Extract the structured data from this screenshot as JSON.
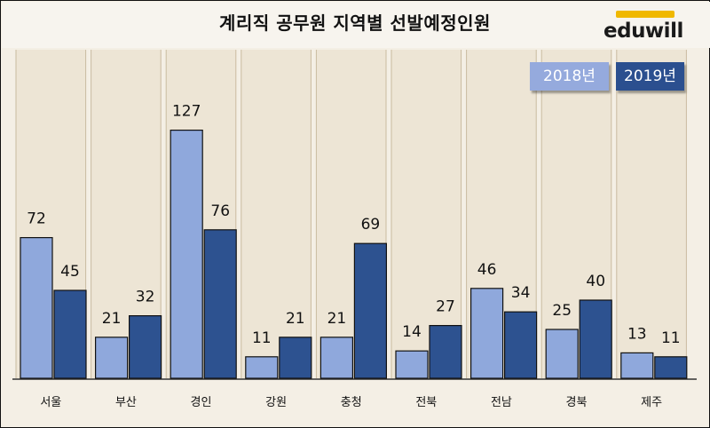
{
  "title": "계리직 공무원 지역별 선발예정인원",
  "logo": "eduwill",
  "colors": {
    "s2018": "#8fa8dc",
    "s2019": "#2d5290",
    "background": "#f4efe5",
    "stripe": "#e7ddc9"
  },
  "chart_data": {
    "type": "bar",
    "title": "계리직 공무원 지역별 선발예정인원",
    "categories": [
      "서울",
      "부산",
      "경인",
      "강원",
      "충청",
      "전북",
      "전남",
      "경북",
      "제주"
    ],
    "series": [
      {
        "name": "2018년",
        "values": [
          72,
          21,
          127,
          11,
          21,
          14,
          46,
          25,
          13
        ]
      },
      {
        "name": "2019년",
        "values": [
          45,
          32,
          76,
          21,
          69,
          27,
          34,
          40,
          11
        ]
      }
    ],
    "ylim": [
      0,
      135
    ],
    "grid": false,
    "legend": "top-right"
  }
}
